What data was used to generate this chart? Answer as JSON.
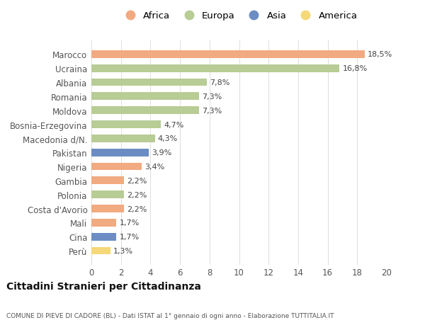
{
  "categories": [
    "Marocco",
    "Ucraina",
    "Albania",
    "Romania",
    "Moldova",
    "Bosnia-Erzegovina",
    "Macedonia d/N.",
    "Pakistan",
    "Nigeria",
    "Gambia",
    "Polonia",
    "Costa d'Avorio",
    "Mali",
    "Cina",
    "Perù"
  ],
  "values": [
    18.5,
    16.8,
    7.8,
    7.3,
    7.3,
    4.7,
    4.3,
    3.9,
    3.4,
    2.2,
    2.2,
    2.2,
    1.7,
    1.7,
    1.3
  ],
  "labels": [
    "18,5%",
    "16,8%",
    "7,8%",
    "7,3%",
    "7,3%",
    "4,7%",
    "4,3%",
    "3,9%",
    "3,4%",
    "2,2%",
    "2,2%",
    "2,2%",
    "1,7%",
    "1,7%",
    "1,3%"
  ],
  "continents": [
    "Africa",
    "Europa",
    "Europa",
    "Europa",
    "Europa",
    "Europa",
    "Europa",
    "Asia",
    "Africa",
    "Africa",
    "Europa",
    "Africa",
    "Africa",
    "Asia",
    "America"
  ],
  "colors": {
    "Africa": "#F2AA80",
    "Europa": "#B8CC95",
    "Asia": "#6B8DC4",
    "America": "#F5D878"
  },
  "xlim": [
    0,
    20
  ],
  "xticks": [
    0,
    2,
    4,
    6,
    8,
    10,
    12,
    14,
    16,
    18,
    20
  ],
  "title": "Cittadini Stranieri per Cittadinanza",
  "subtitle": "COMUNE DI PIEVE DI CADORE (BL) - Dati ISTAT al 1° gennaio di ogni anno - Elaborazione TUTTITALIA.IT",
  "background_color": "#ffffff",
  "bar_height": 0.55,
  "figsize": [
    6.0,
    4.6
  ],
  "dpi": 100,
  "legend_order": [
    "Africa",
    "Europa",
    "Asia",
    "America"
  ]
}
